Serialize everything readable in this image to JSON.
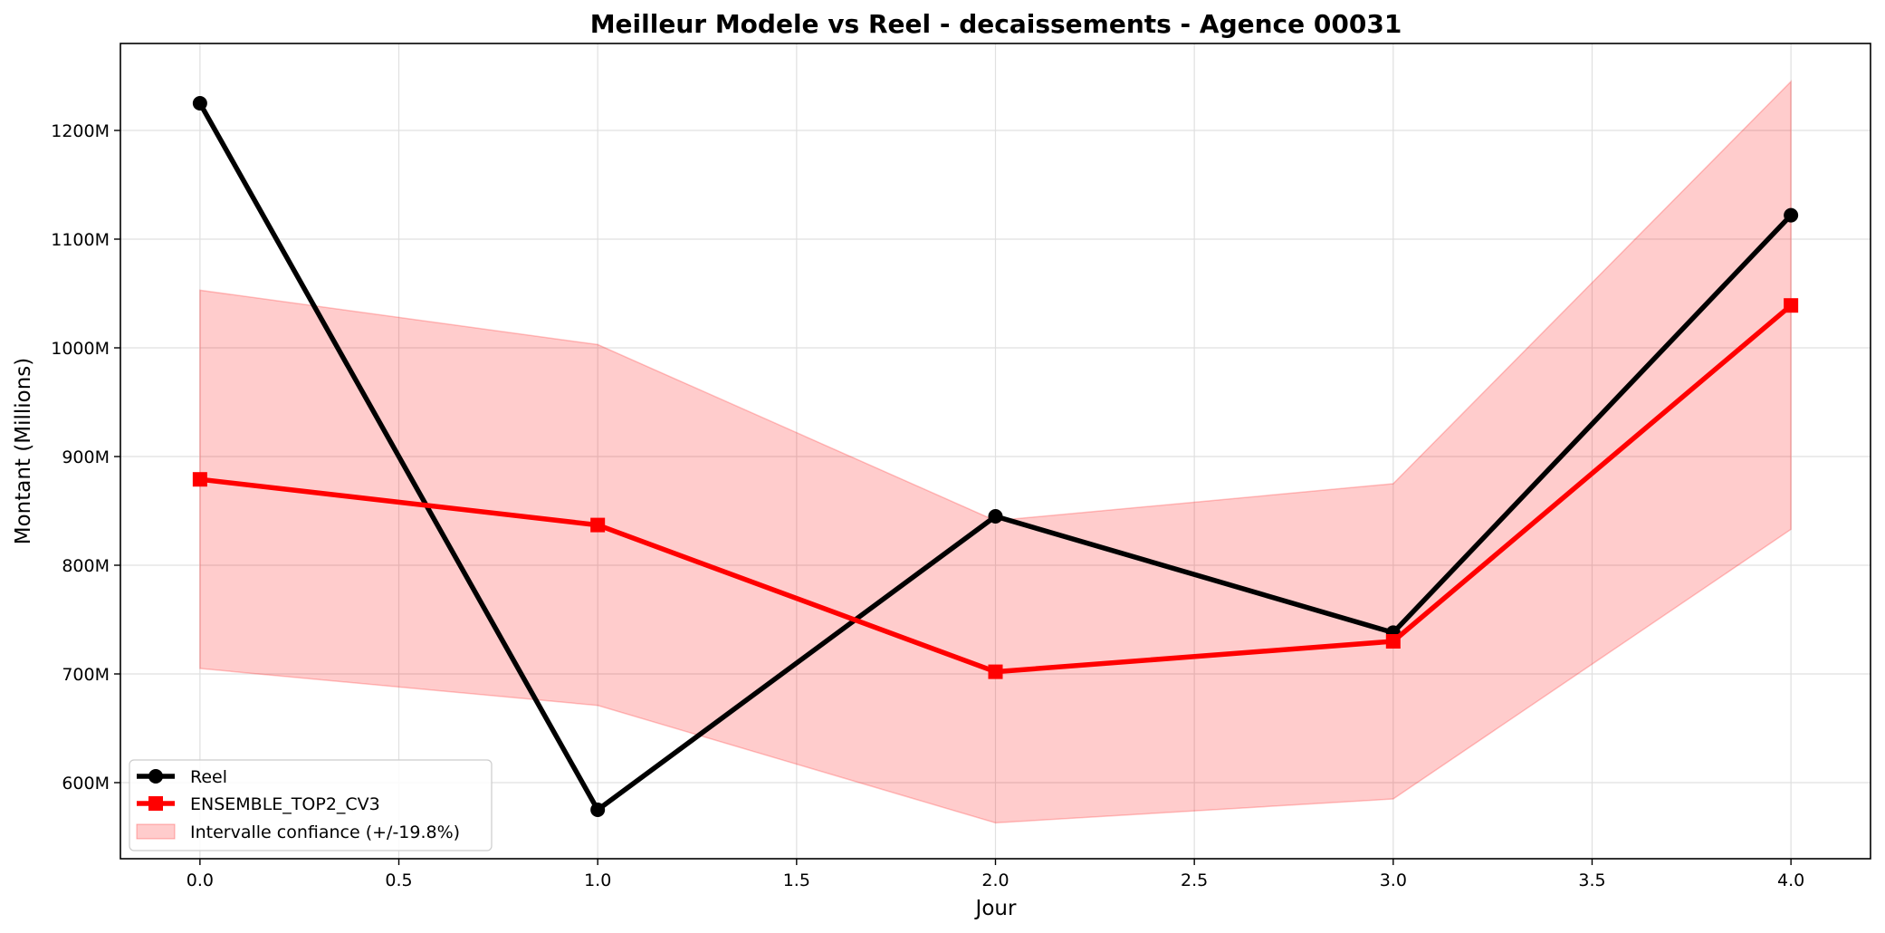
{
  "chart_data": {
    "type": "line",
    "title": "Meilleur Modele vs Reel - decaissements - Agence 00031",
    "xlabel": "Jour",
    "ylabel": "Montant (Millions)",
    "xlim": [
      -0.2,
      4.2
    ],
    "ylim": [
      530,
      1280
    ],
    "x_ticks": [
      0.0,
      0.5,
      1.0,
      1.5,
      2.0,
      2.5,
      3.0,
      3.5,
      4.0
    ],
    "x_tick_labels": [
      "0.0",
      "0.5",
      "1.0",
      "1.5",
      "2.0",
      "2.5",
      "3.0",
      "3.5",
      "4.0"
    ],
    "y_ticks": [
      600,
      700,
      800,
      900,
      1000,
      1100,
      1200
    ],
    "y_tick_labels": [
      "600M",
      "700M",
      "800M",
      "900M",
      "1000M",
      "1100M",
      "1200M"
    ],
    "grid": true,
    "legend_position": "bottom-left",
    "x": [
      0,
      1,
      2,
      3,
      4
    ],
    "series": [
      {
        "name": "Reel",
        "values": [
          1225,
          575,
          845,
          738,
          1122
        ],
        "color": "#000000",
        "marker": "circle"
      },
      {
        "name": "ENSEMBLE_TOP2_CV3",
        "values": [
          879,
          837,
          702,
          730,
          1039
        ],
        "color": "#ff0000",
        "marker": "square"
      }
    ],
    "band": {
      "name": "Intervalle confiance (+/-19.8%)",
      "lower": [
        705,
        671,
        563,
        585,
        833
      ],
      "upper": [
        1053,
        1003,
        841,
        875,
        1245
      ],
      "color": "#ff0000"
    }
  }
}
